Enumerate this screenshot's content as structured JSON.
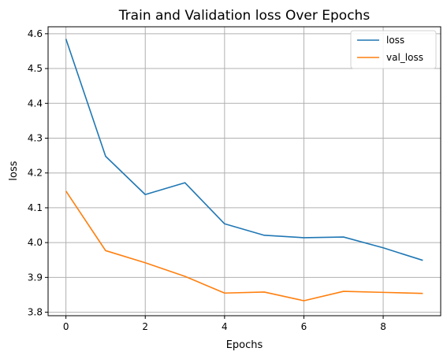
{
  "chart_data": {
    "type": "line",
    "title": "Train and Validation loss Over Epochs",
    "xlabel": "Epochs",
    "ylabel": "loss",
    "x": [
      0,
      1,
      2,
      3,
      4,
      5,
      6,
      7,
      8,
      9
    ],
    "xlim": [
      -0.45,
      9.45
    ],
    "ylim": [
      3.79,
      4.62
    ],
    "xticks": [
      0,
      2,
      4,
      6,
      8
    ],
    "yticks": [
      3.8,
      3.9,
      4.0,
      4.1,
      4.2,
      4.3,
      4.4,
      4.5,
      4.6
    ],
    "grid": true,
    "legend_position": "top-right",
    "series": [
      {
        "name": "loss",
        "color": "#1f77b4",
        "values": [
          4.585,
          4.248,
          4.138,
          4.172,
          4.054,
          4.021,
          4.014,
          4.016,
          3.985,
          3.949
        ]
      },
      {
        "name": "val_loss",
        "color": "#ff7f0e",
        "values": [
          4.148,
          3.977,
          3.942,
          3.903,
          3.855,
          3.858,
          3.833,
          3.86,
          3.857,
          3.854
        ]
      }
    ]
  }
}
